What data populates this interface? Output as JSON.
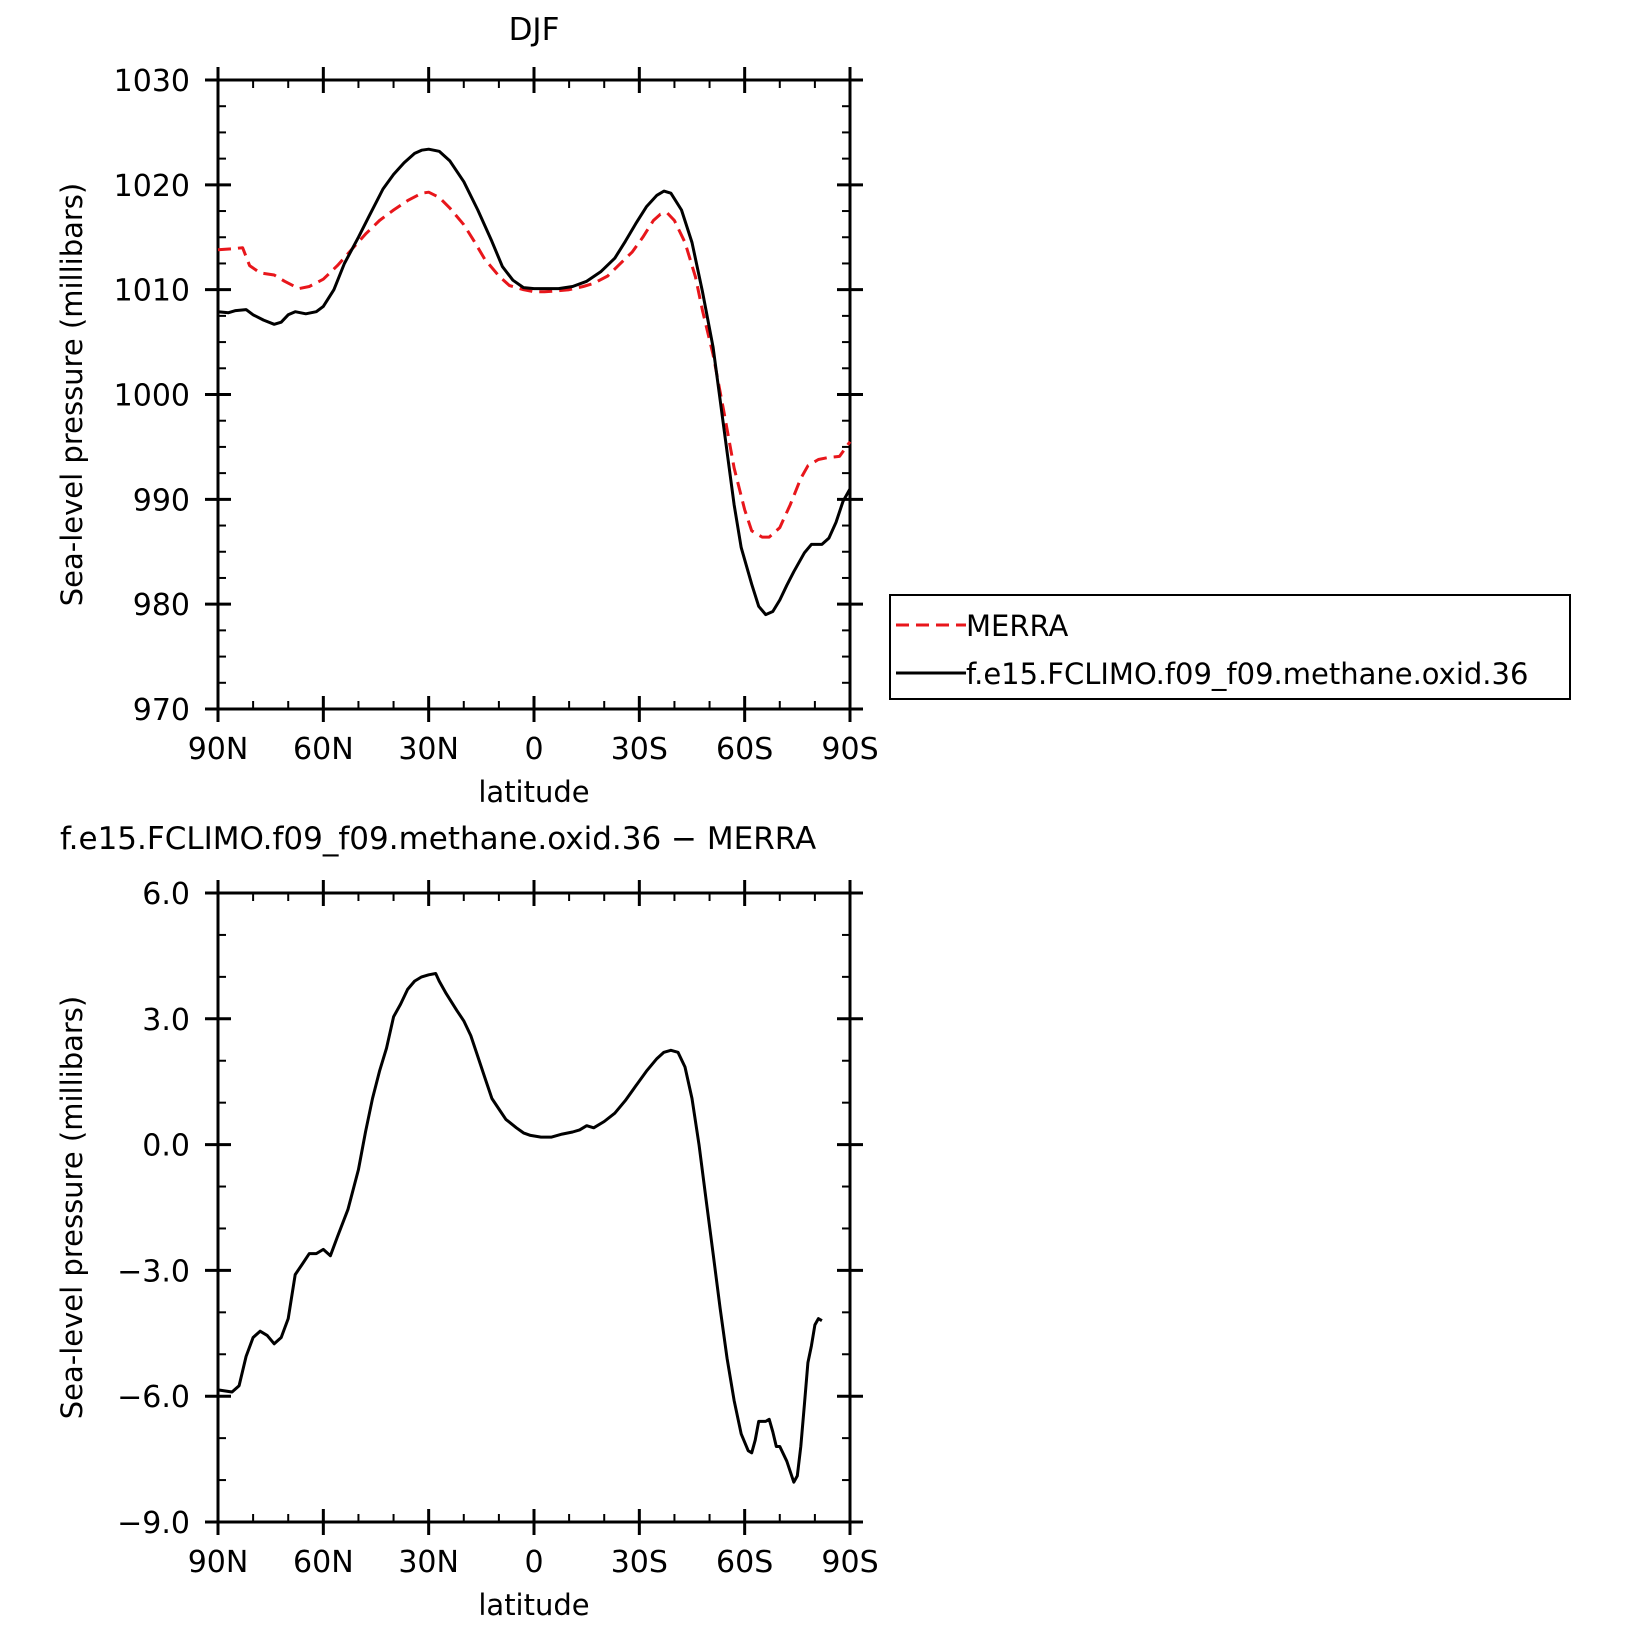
{
  "chart_data": [
    {
      "type": "line",
      "title": "DJF",
      "xlabel": "latitude",
      "ylabel": "Sea-level pressure (millibars)",
      "xlim": [
        90,
        -90
      ],
      "ylim": [
        970,
        1030
      ],
      "x_ticks": [
        {
          "value": 90,
          "label": "90N"
        },
        {
          "value": 60,
          "label": "60N"
        },
        {
          "value": 30,
          "label": "30N"
        },
        {
          "value": 0,
          "label": "0"
        },
        {
          "value": -30,
          "label": "30S"
        },
        {
          "value": -60,
          "label": "60S"
        },
        {
          "value": -90,
          "label": "90S"
        }
      ],
      "y_ticks": [
        {
          "value": 970,
          "label": "970"
        },
        {
          "value": 980,
          "label": "980"
        },
        {
          "value": 990,
          "label": "990"
        },
        {
          "value": 1000,
          "label": "1000"
        },
        {
          "value": 1010,
          "label": "1010"
        },
        {
          "value": 1020,
          "label": "1020"
        },
        {
          "value": 1030,
          "label": "1030"
        }
      ],
      "grid": false,
      "legend_position": "right",
      "series": [
        {
          "name": "MERRA",
          "color": "#e8161b",
          "style": "dashed",
          "points": [
            [
              90,
              1013.8
            ],
            [
              86,
              1013.9
            ],
            [
              83,
              1014.0
            ],
            [
              81,
              1012.3
            ],
            [
              78,
              1011.6
            ],
            [
              74,
              1011.4
            ],
            [
              71,
              1010.8
            ],
            [
              67,
              1010.1
            ],
            [
              64,
              1010.3
            ],
            [
              60,
              1011.0
            ],
            [
              56,
              1012.3
            ],
            [
              52,
              1013.8
            ],
            [
              48,
              1015.3
            ],
            [
              44,
              1016.6
            ],
            [
              40,
              1017.6
            ],
            [
              36,
              1018.5
            ],
            [
              32,
              1019.2
            ],
            [
              30,
              1019.3
            ],
            [
              27,
              1018.8
            ],
            [
              24,
              1017.8
            ],
            [
              20,
              1016.2
            ],
            [
              17,
              1014.6
            ],
            [
              14,
              1012.9
            ],
            [
              10,
              1011.3
            ],
            [
              7,
              1010.4
            ],
            [
              3,
              1010.0
            ],
            [
              0,
              1009.8
            ],
            [
              -3,
              1009.8
            ],
            [
              -7,
              1009.9
            ],
            [
              -10,
              1010.0
            ],
            [
              -14,
              1010.3
            ],
            [
              -17,
              1010.6
            ],
            [
              -21,
              1011.3
            ],
            [
              -24,
              1012.3
            ],
            [
              -28,
              1013.6
            ],
            [
              -31,
              1015.0
            ],
            [
              -34,
              1016.6
            ],
            [
              -36,
              1017.2
            ],
            [
              -38,
              1017.3
            ],
            [
              -40,
              1016.6
            ],
            [
              -43,
              1014.5
            ],
            [
              -46,
              1011.2
            ],
            [
              -48,
              1008.0
            ],
            [
              -51,
              1003.8
            ],
            [
              -54,
              998.5
            ],
            [
              -57,
              993.0
            ],
            [
              -60,
              989.0
            ],
            [
              -62,
              987.0
            ],
            [
              -65,
              986.4
            ],
            [
              -67,
              986.4
            ],
            [
              -70,
              987.3
            ],
            [
              -73,
              989.5
            ],
            [
              -76,
              992.0
            ],
            [
              -78,
              993.2
            ],
            [
              -81,
              993.8
            ],
            [
              -84,
              994.0
            ],
            [
              -87,
              994.1
            ],
            [
              -90,
              995.5
            ]
          ]
        },
        {
          "name": "f.e15.FCLIMO.f09_f09.methane.oxid.36",
          "color": "#000000",
          "style": "solid",
          "points": [
            [
              90,
              1007.9
            ],
            [
              87,
              1007.8
            ],
            [
              85,
              1008.0
            ],
            [
              82,
              1008.1
            ],
            [
              80,
              1007.6
            ],
            [
              77,
              1007.1
            ],
            [
              74,
              1006.7
            ],
            [
              72,
              1006.9
            ],
            [
              70,
              1007.6
            ],
            [
              68,
              1007.9
            ],
            [
              65,
              1007.7
            ],
            [
              62,
              1007.9
            ],
            [
              60,
              1008.4
            ],
            [
              57,
              1010.0
            ],
            [
              54,
              1012.5
            ],
            [
              50,
              1015.0
            ],
            [
              47,
              1017.0
            ],
            [
              43,
              1019.6
            ],
            [
              40,
              1021.0
            ],
            [
              37,
              1022.1
            ],
            [
              34,
              1023.0
            ],
            [
              32,
              1023.3
            ],
            [
              30,
              1023.4
            ],
            [
              27,
              1023.2
            ],
            [
              24,
              1022.3
            ],
            [
              20,
              1020.3
            ],
            [
              16,
              1017.6
            ],
            [
              12,
              1014.6
            ],
            [
              9,
              1012.2
            ],
            [
              6,
              1010.9
            ],
            [
              3,
              1010.2
            ],
            [
              0,
              1010.1
            ],
            [
              -3,
              1010.1
            ],
            [
              -7,
              1010.1
            ],
            [
              -11,
              1010.3
            ],
            [
              -15,
              1010.8
            ],
            [
              -19,
              1011.7
            ],
            [
              -23,
              1013.0
            ],
            [
              -26,
              1014.6
            ],
            [
              -29,
              1016.3
            ],
            [
              -32,
              1017.9
            ],
            [
              -35,
              1019.0
            ],
            [
              -37,
              1019.4
            ],
            [
              -39,
              1019.2
            ],
            [
              -42,
              1017.6
            ],
            [
              -45,
              1014.5
            ],
            [
              -48,
              1009.8
            ],
            [
              -51,
              1004.5
            ],
            [
              -53,
              999.5
            ],
            [
              -55,
              994.5
            ],
            [
              -57,
              989.5
            ],
            [
              -59,
              985.4
            ],
            [
              -62,
              981.9
            ],
            [
              -64,
              979.8
            ],
            [
              -66,
              979.0
            ],
            [
              -68,
              979.3
            ],
            [
              -70,
              980.4
            ],
            [
              -72,
              981.8
            ],
            [
              -74,
              983.1
            ],
            [
              -77,
              984.9
            ],
            [
              -79,
              985.7
            ],
            [
              -82,
              985.7
            ],
            [
              -84,
              986.3
            ],
            [
              -86,
              987.8
            ],
            [
              -88,
              989.8
            ],
            [
              -90,
              991.0
            ]
          ]
        }
      ]
    },
    {
      "type": "line",
      "title": "f.e15.FCLIMO.f09_f09.methane.oxid.36 − MERRA",
      "xlabel": "latitude",
      "ylabel": "Sea-level pressure (millibars)",
      "xlim": [
        90,
        -90
      ],
      "ylim": [
        -9,
        6
      ],
      "x_ticks": [
        {
          "value": 90,
          "label": "90N"
        },
        {
          "value": 60,
          "label": "60N"
        },
        {
          "value": 30,
          "label": "30N"
        },
        {
          "value": 0,
          "label": "0"
        },
        {
          "value": -30,
          "label": "30S"
        },
        {
          "value": -60,
          "label": "60S"
        },
        {
          "value": -90,
          "label": "90S"
        }
      ],
      "y_ticks": [
        {
          "value": 6,
          "label": "6.0"
        },
        {
          "value": 3,
          "label": "3.0"
        },
        {
          "value": 0,
          "label": "0.0"
        },
        {
          "value": -3,
          "label": "−3.0"
        },
        {
          "value": -6,
          "label": "−6.0"
        },
        {
          "value": -9,
          "label": "−9.0"
        }
      ],
      "grid": false,
      "series": [
        {
          "color": "#000000",
          "style": "solid",
          "points": [
            [
              90,
              -5.85
            ],
            [
              86,
              -5.9
            ],
            [
              84,
              -5.75
            ],
            [
              82,
              -5.05
            ],
            [
              80,
              -4.6
            ],
            [
              78,
              -4.45
            ],
            [
              76,
              -4.55
            ],
            [
              74,
              -4.75
            ],
            [
              72,
              -4.6
            ],
            [
              70,
              -4.15
            ],
            [
              68,
              -3.1
            ],
            [
              66,
              -2.85
            ],
            [
              64,
              -2.6
            ],
            [
              62,
              -2.6
            ],
            [
              60,
              -2.5
            ],
            [
              58,
              -2.65
            ],
            [
              56,
              -2.2
            ],
            [
              53,
              -1.55
            ],
            [
              50,
              -0.6
            ],
            [
              48,
              0.3
            ],
            [
              46,
              1.1
            ],
            [
              44,
              1.75
            ],
            [
              42,
              2.3
            ],
            [
              40,
              3.05
            ],
            [
              38,
              3.35
            ],
            [
              36,
              3.7
            ],
            [
              34,
              3.9
            ],
            [
              32,
              4.0
            ],
            [
              30,
              4.05
            ],
            [
              28,
              4.08
            ],
            [
              27,
              3.9
            ],
            [
              25,
              3.6
            ],
            [
              22,
              3.2
            ],
            [
              20,
              2.95
            ],
            [
              18,
              2.6
            ],
            [
              16,
              2.1
            ],
            [
              14,
              1.6
            ],
            [
              12,
              1.1
            ],
            [
              10,
              0.85
            ],
            [
              8,
              0.6
            ],
            [
              5,
              0.4
            ],
            [
              3,
              0.28
            ],
            [
              1,
              0.22
            ],
            [
              -2,
              0.18
            ],
            [
              -5,
              0.18
            ],
            [
              -8,
              0.25
            ],
            [
              -11,
              0.3
            ],
            [
              -13,
              0.35
            ],
            [
              -15,
              0.45
            ],
            [
              -17,
              0.4
            ],
            [
              -20,
              0.55
            ],
            [
              -23,
              0.75
            ],
            [
              -26,
              1.05
            ],
            [
              -29,
              1.4
            ],
            [
              -32,
              1.75
            ],
            [
              -35,
              2.05
            ],
            [
              -37,
              2.2
            ],
            [
              -39,
              2.25
            ],
            [
              -41,
              2.2
            ],
            [
              -43,
              1.85
            ],
            [
              -45,
              1.1
            ],
            [
              -47,
              0.0
            ],
            [
              -49,
              -1.3
            ],
            [
              -51,
              -2.6
            ],
            [
              -53,
              -3.9
            ],
            [
              -55,
              -5.1
            ],
            [
              -57,
              -6.1
            ],
            [
              -59,
              -6.9
            ],
            [
              -61,
              -7.3
            ],
            [
              -62,
              -7.35
            ],
            [
              -63,
              -7.05
            ],
            [
              -64,
              -6.6
            ],
            [
              -66,
              -6.6
            ],
            [
              -67,
              -6.55
            ],
            [
              -68,
              -6.85
            ],
            [
              -69,
              -7.2
            ],
            [
              -70,
              -7.2
            ],
            [
              -72,
              -7.55
            ],
            [
              -73,
              -7.8
            ],
            [
              -74,
              -8.05
            ],
            [
              -75,
              -7.9
            ],
            [
              -76,
              -7.2
            ],
            [
              -77,
              -6.2
            ],
            [
              -78,
              -5.2
            ],
            [
              -79,
              -4.8
            ],
            [
              -80,
              -4.3
            ],
            [
              -81,
              -4.15
            ],
            [
              -82,
              -4.2
            ]
          ]
        }
      ]
    }
  ],
  "legend": {
    "items": [
      {
        "label": "MERRA",
        "color": "#e8161b",
        "style": "dashed"
      },
      {
        "label": "f.e15.FCLIMO.f09_f09.methane.oxid.36",
        "color": "#000000",
        "style": "solid"
      }
    ]
  }
}
